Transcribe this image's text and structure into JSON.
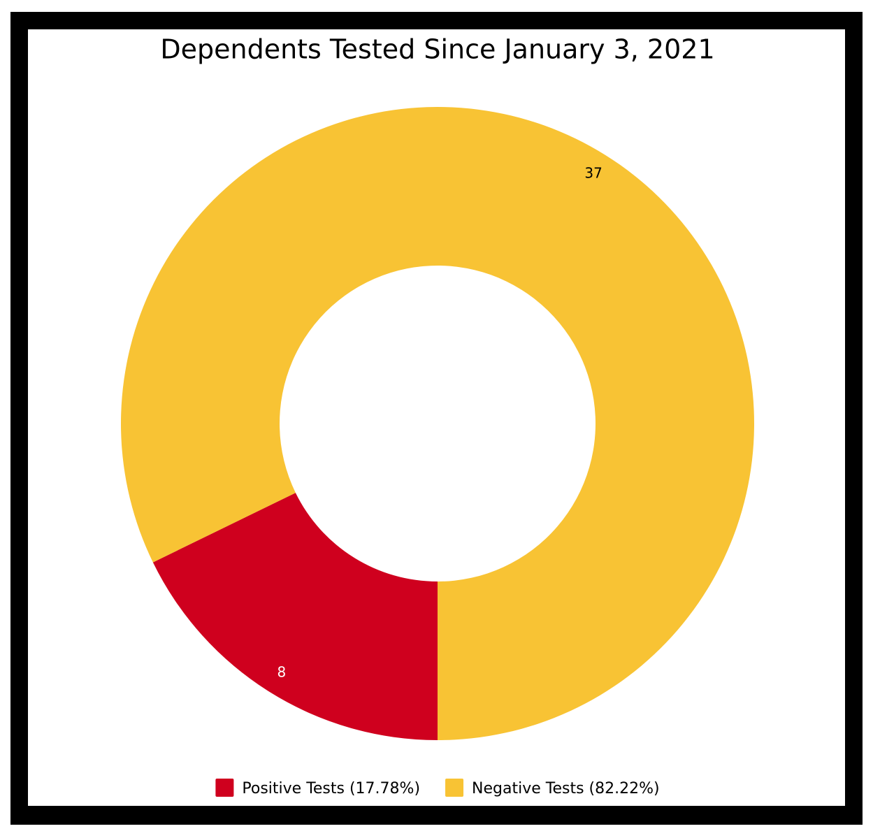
{
  "chart_data": {
    "type": "pie",
    "donut": true,
    "title": "Dependents Tested Since January 3, 2021",
    "categories": [
      "Positive Tests (17.78%)",
      "Negative Tests (82.22%)"
    ],
    "values": [
      8,
      37
    ],
    "colors": [
      "#cf001e",
      "#f8c334"
    ],
    "label_colors": [
      "#ffffff",
      "#000000"
    ],
    "legend": "bottom"
  }
}
